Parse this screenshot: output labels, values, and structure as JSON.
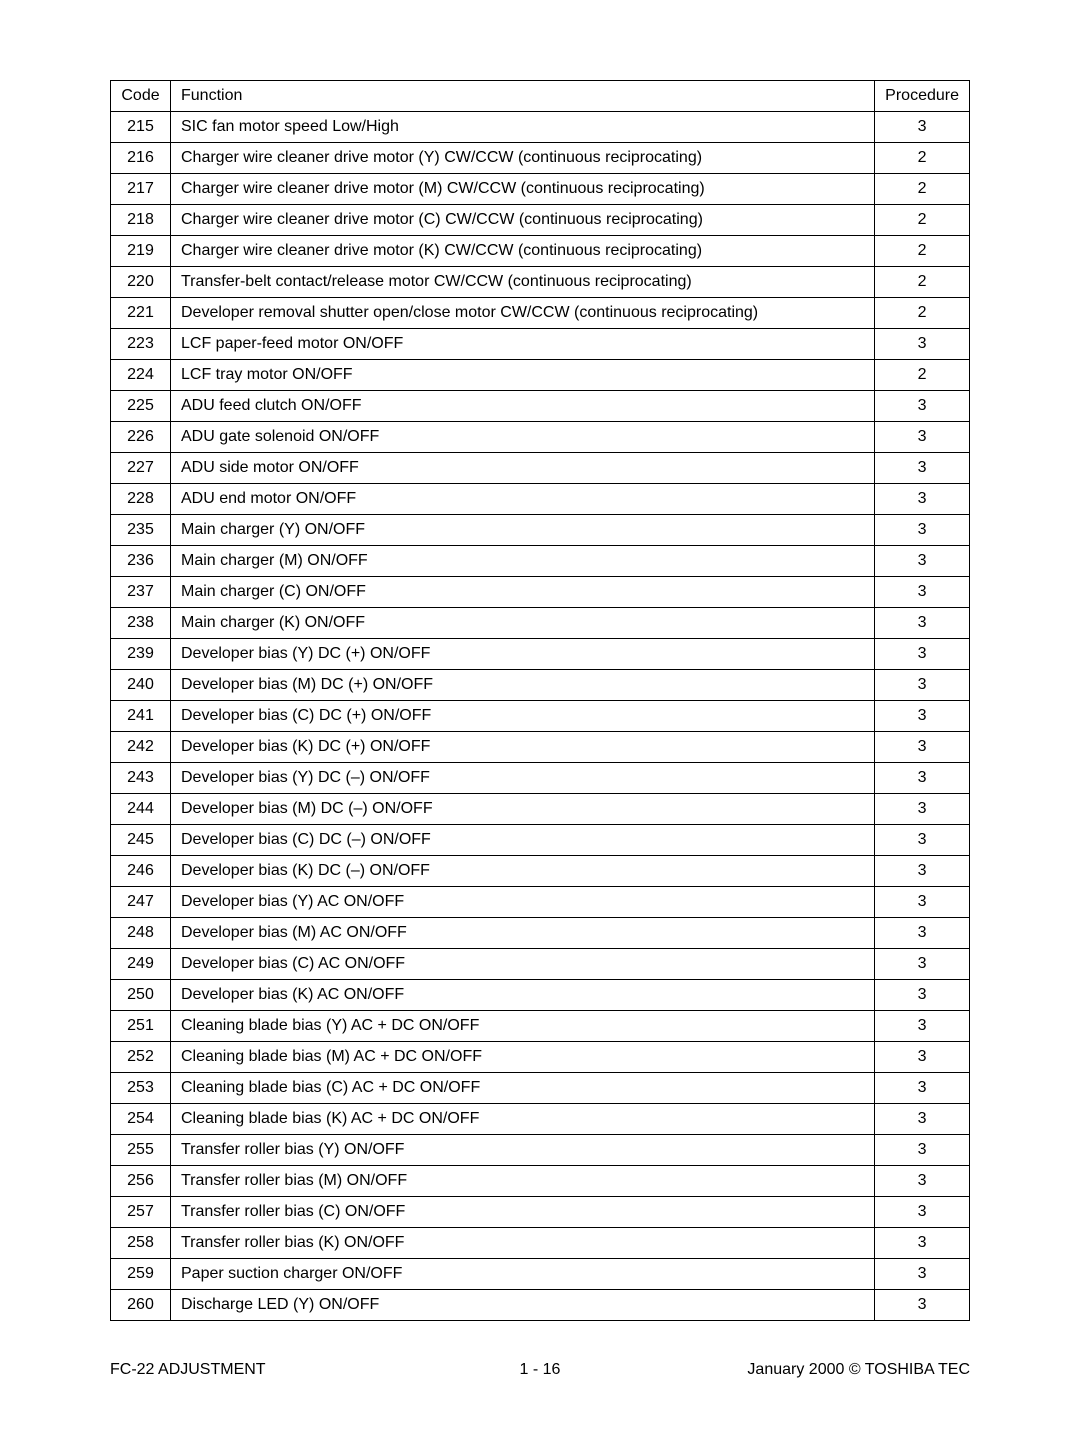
{
  "table": {
    "headers": {
      "code": "Code",
      "function": "Function",
      "procedure": "Procedure"
    },
    "rows": [
      {
        "code": "215",
        "function": "SIC fan motor speed Low/High",
        "procedure": "3"
      },
      {
        "code": "216",
        "function": "Charger wire cleaner drive motor (Y) CW/CCW (continuous reciprocating)",
        "procedure": "2"
      },
      {
        "code": "217",
        "function": "Charger wire cleaner drive motor (M) CW/CCW (continuous reciprocating)",
        "procedure": "2"
      },
      {
        "code": "218",
        "function": "Charger wire cleaner drive motor (C) CW/CCW (continuous reciprocating)",
        "procedure": "2"
      },
      {
        "code": "219",
        "function": "Charger wire cleaner drive motor (K) CW/CCW (continuous reciprocating)",
        "procedure": "2"
      },
      {
        "code": "220",
        "function": "Transfer-belt contact/release motor   CW/CCW  (continuous reciprocating)",
        "procedure": "2"
      },
      {
        "code": "221",
        "function": "Developer removal shutter open/close motor  CW/CCW  (continuous reciprocating)",
        "procedure": "2"
      },
      {
        "code": "223",
        "function": "LCF paper-feed motor ON/OFF",
        "procedure": "3"
      },
      {
        "code": "224",
        "function": "LCF tray motor ON/OFF",
        "procedure": "2"
      },
      {
        "code": "225",
        "function": "ADU feed clutch ON/OFF",
        "procedure": "3"
      },
      {
        "code": "226",
        "function": "ADU gate solenoid ON/OFF",
        "procedure": "3"
      },
      {
        "code": "227",
        "function": "ADU side motor ON/OFF",
        "procedure": "3"
      },
      {
        "code": "228",
        "function": "ADU end motor ON/OFF",
        "procedure": "3"
      },
      {
        "code": "235",
        "function": "Main charger (Y)  ON/OFF",
        "procedure": "3"
      },
      {
        "code": "236",
        "function": "Main charger (M)  ON/OFF",
        "procedure": "3"
      },
      {
        "code": "237",
        "function": "Main charger (C)  ON/OFF",
        "procedure": "3"
      },
      {
        "code": "238",
        "function": "Main charger (K)  ON/OFF",
        "procedure": "3"
      },
      {
        "code": "239",
        "function": "Developer bias (Y)  DC (+) ON/OFF",
        "procedure": "3"
      },
      {
        "code": "240",
        "function": "Developer bias (M)  DC (+) ON/OFF",
        "procedure": "3"
      },
      {
        "code": "241",
        "function": "Developer bias (C)  DC (+) ON/OFF",
        "procedure": "3"
      },
      {
        "code": "242",
        "function": "Developer bias (K)  DC (+) ON/OFF",
        "procedure": "3"
      },
      {
        "code": "243",
        "function": "Developer bias (Y)  DC (–) ON/OFF",
        "procedure": "3"
      },
      {
        "code": "244",
        "function": "Developer bias (M)  DC (–) ON/OFF",
        "procedure": "3"
      },
      {
        "code": "245",
        "function": "Developer bias (C)  DC (–) ON/OFF",
        "procedure": "3"
      },
      {
        "code": "246",
        "function": "Developer bias (K)  DC (–) ON/OFF",
        "procedure": "3"
      },
      {
        "code": "247",
        "function": "Developer bias (Y)  AC  ON/OFF",
        "procedure": "3"
      },
      {
        "code": "248",
        "function": "Developer bias (M)  AC  ON/OFF",
        "procedure": "3"
      },
      {
        "code": "249",
        "function": "Developer bias (C)  AC  ON/OFF",
        "procedure": "3"
      },
      {
        "code": "250",
        "function": "Developer bias (K)  AC  ON/OFF",
        "procedure": "3"
      },
      {
        "code": "251",
        "function": "Cleaning blade bias (Y)  AC + DC  ON/OFF",
        "procedure": "3"
      },
      {
        "code": "252",
        "function": "Cleaning blade bias (M)  AC + DC  ON/OFF",
        "procedure": "3"
      },
      {
        "code": "253",
        "function": "Cleaning blade bias (C)  AC + DC  ON/OFF",
        "procedure": "3"
      },
      {
        "code": "254",
        "function": "Cleaning blade bias (K)  AC + DC  ON/OFF",
        "procedure": "3"
      },
      {
        "code": "255",
        "function": "Transfer roller bias (Y)  ON/OFF",
        "procedure": "3"
      },
      {
        "code": "256",
        "function": "Transfer roller bias (M)  ON/OFF",
        "procedure": "3"
      },
      {
        "code": "257",
        "function": "Transfer roller bias (C)  ON/OFF",
        "procedure": "3"
      },
      {
        "code": "258",
        "function": "Transfer roller bias (K)  ON/OFF",
        "procedure": "3"
      },
      {
        "code": "259",
        "function": "Paper suction charger  ON/OFF",
        "procedure": "3"
      },
      {
        "code": "260",
        "function": "Discharge LED (Y)  ON/OFF",
        "procedure": "3"
      }
    ],
    "column_widths": {
      "code": 60,
      "procedure": 90
    },
    "border_color": "#000000",
    "text_color": "#000000",
    "background_color": "#ffffff",
    "font_size": 16
  },
  "footer": {
    "left": "FC-22 ADJUSTMENT",
    "center": "1 - 16",
    "right": "January 2000  ©  TOSHIBA TEC"
  }
}
